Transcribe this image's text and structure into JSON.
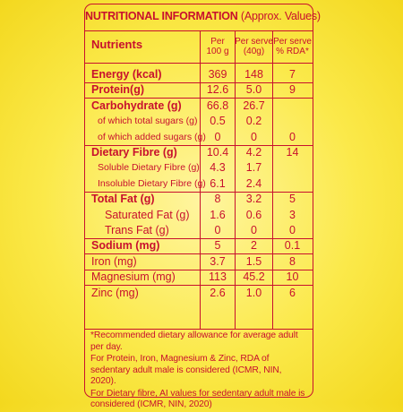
{
  "title": {
    "main": "NUTRITIONAL INFORMATION",
    "sub": "(Approx. Values)"
  },
  "header": {
    "nutrients": "Nutrients",
    "col1": [
      "Per",
      "100 g"
    ],
    "col2": [
      "Per serve",
      "(40g)"
    ],
    "col3": [
      "Per serve",
      "% RDA*"
    ]
  },
  "rows": [
    {
      "label": "Energy (kcal)",
      "style": "bold",
      "v1": "369",
      "v2": "148",
      "v3": "7"
    },
    {
      "label": "Protein(g)",
      "style": "bold",
      "v1": "12.6",
      "v2": "5.0",
      "v3": "9"
    },
    {
      "label": "Carbohydrate (g)",
      "style": "bold",
      "v1": "66.8",
      "v2": "26.7",
      "v3": ""
    },
    {
      "label": "of which total sugars (g)",
      "style": "small",
      "v1": "0.5",
      "v2": "0.2",
      "v3": ""
    },
    {
      "label": "of which added sugars (g)",
      "style": "small",
      "v1": "0",
      "v2": "0",
      "v3": "0"
    },
    {
      "label": "Dietary Fibre (g)",
      "style": "bold",
      "v1": "10.4",
      "v2": "4.2",
      "v3": "14"
    },
    {
      "label": "Soluble Dietary Fibre (g)",
      "style": "small",
      "v1": "4.3",
      "v2": "1.7",
      "v3": ""
    },
    {
      "label": "Insoluble Dietary Fibre (g)",
      "style": "small",
      "v1": "6.1",
      "v2": "2.4",
      "v3": ""
    },
    {
      "label": "Total Fat (g)",
      "style": "bold",
      "v1": "8",
      "v2": "3.2",
      "v3": "5"
    },
    {
      "label": "Saturated Fat (g)",
      "style": "indent",
      "v1": "1.6",
      "v2": "0.6",
      "v3": "3"
    },
    {
      "label": "Trans Fat (g)",
      "style": "indent",
      "v1": "0",
      "v2": "0",
      "v3": "0"
    },
    {
      "label": "Sodium (mg)",
      "style": "bold",
      "v1": "5",
      "v2": "2",
      "v3": "0.1"
    },
    {
      "label": "Iron (mg)",
      "style": "normal",
      "v1": "3.7",
      "v2": "1.5",
      "v3": "8"
    },
    {
      "label": "Magnesium (mg)",
      "style": "normal",
      "v1": "113",
      "v2": "45.2",
      "v3": "10"
    },
    {
      "label": "Zinc (mg)",
      "style": "normal",
      "v1": "2.6",
      "v2": "1.0",
      "v3": "6"
    }
  ],
  "footnotes": [
    "*Recommended dietary allowance for average adult per day.",
    "For Protein, Iron, Magnesium & Zinc, RDA of sedentary adult male is considered (ICMR, NIN, 2020).",
    "For Dietary fibre, AI values for sedentary adult male is considered (ICMR, NIN, 2020)"
  ],
  "colors": {
    "text": "#c8102e",
    "background": "#fbe94a"
  }
}
